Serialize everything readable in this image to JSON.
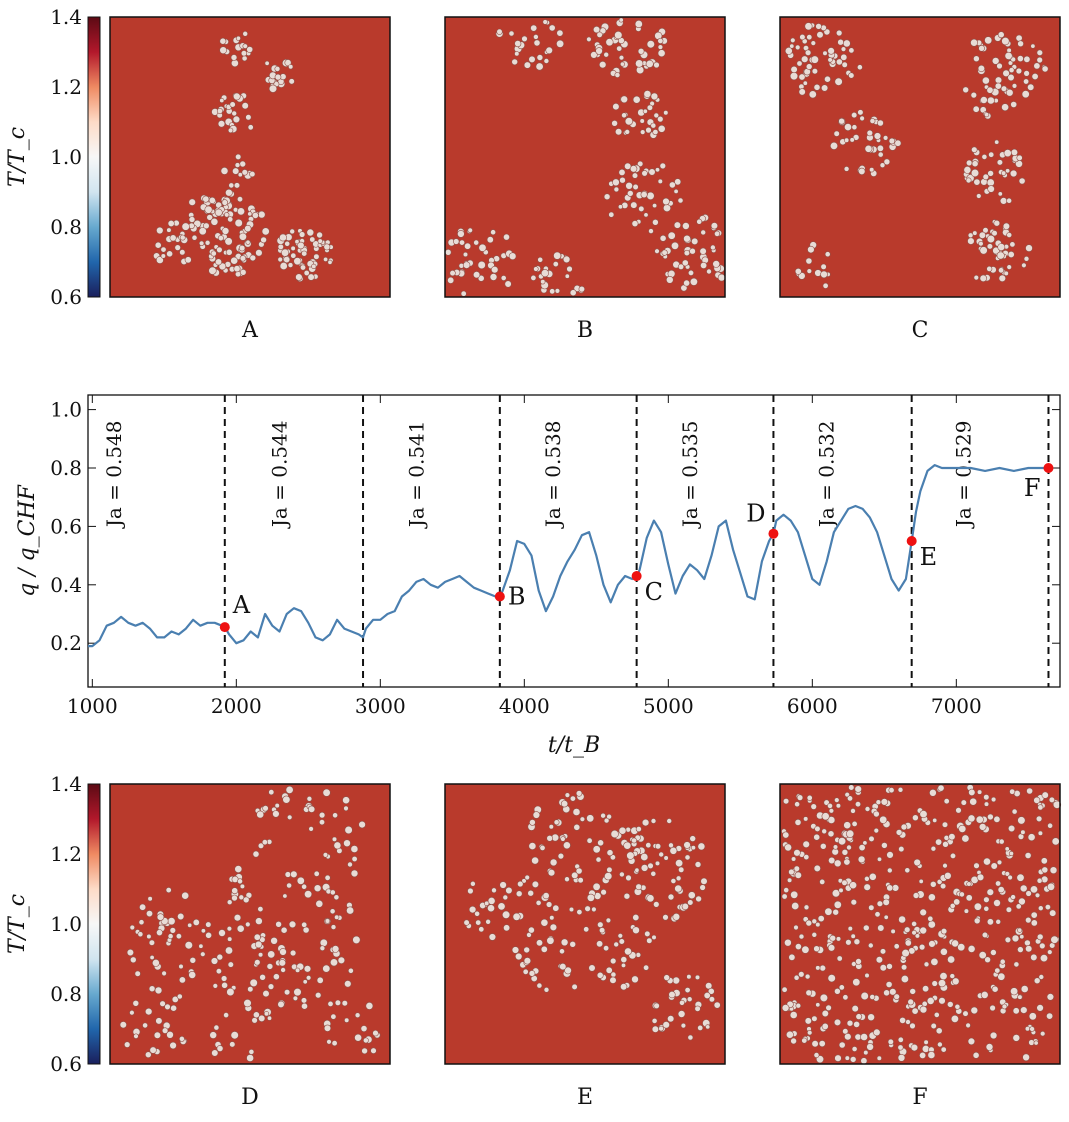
{
  "chart_data": [
    {
      "type": "heatmap",
      "panel_group": "top",
      "colorbar": {
        "label": "T/T_c",
        "range": [
          0.6,
          1.4
        ],
        "ticks": [
          "0.6",
          "0.8",
          "1.0",
          "1.2",
          "1.4"
        ],
        "colors": [
          "#1a1f5c",
          "#2166ac",
          "#67a9cf",
          "#d1e5f0",
          "#f7f7f7",
          "#fddbc7",
          "#ef8a62",
          "#b2182b",
          "#5c0a14"
        ]
      },
      "panels": [
        {
          "label": "A",
          "pattern": "sparse-cluster"
        },
        {
          "label": "B",
          "pattern": "growing-cluster"
        },
        {
          "label": "C",
          "pattern": "connected-cluster"
        }
      ]
    },
    {
      "type": "line",
      "title": "",
      "xlabel": "t/t_B",
      "ylabel": "q / q_CHF",
      "xlim": [
        970,
        7720
      ],
      "ylim": [
        0.05,
        1.05
      ],
      "xticks": [
        1000,
        2000,
        3000,
        4000,
        5000,
        6000,
        7000
      ],
      "yticks": [
        0.2,
        0.4,
        0.6,
        0.8,
        1.0
      ],
      "line_color": "#4a7fb0",
      "vlines": [
        1920,
        2880,
        3830,
        4780,
        5730,
        6690,
        7640
      ],
      "ja_labels": [
        {
          "x": 1150,
          "text": "Ja = 0.548"
        },
        {
          "x": 2300,
          "text": "Ja = 0.544"
        },
        {
          "x": 3250,
          "text": "Ja = 0.541"
        },
        {
          "x": 4200,
          "text": "Ja = 0.538"
        },
        {
          "x": 5150,
          "text": "Ja = 0.535"
        },
        {
          "x": 6100,
          "text": "Ja = 0.532"
        },
        {
          "x": 7050,
          "text": "Ja = 0.529"
        }
      ],
      "points": [
        {
          "label": "A",
          "x": 1920,
          "y": 0.255,
          "label_side": "right-up"
        },
        {
          "label": "B",
          "x": 3830,
          "y": 0.36,
          "label_side": "right"
        },
        {
          "label": "C",
          "x": 4780,
          "y": 0.43,
          "label_side": "right-down"
        },
        {
          "label": "D",
          "x": 5730,
          "y": 0.575,
          "label_side": "left-up"
        },
        {
          "label": "E",
          "x": 6690,
          "y": 0.55,
          "label_side": "right-down"
        },
        {
          "label": "F",
          "x": 7640,
          "y": 0.8,
          "label_side": "left-down"
        }
      ],
      "series": [
        {
          "name": "q/q_CHF",
          "x": [
            970,
            1000,
            1050,
            1100,
            1150,
            1200,
            1250,
            1300,
            1350,
            1400,
            1450,
            1500,
            1550,
            1600,
            1650,
            1700,
            1750,
            1800,
            1850,
            1900,
            1920,
            1950,
            2000,
            2050,
            2100,
            2150,
            2200,
            2250,
            2300,
            2350,
            2400,
            2450,
            2500,
            2550,
            2600,
            2650,
            2700,
            2750,
            2800,
            2850,
            2880,
            2900,
            2950,
            3000,
            3050,
            3100,
            3150,
            3200,
            3250,
            3300,
            3350,
            3400,
            3450,
            3500,
            3550,
            3600,
            3650,
            3700,
            3750,
            3800,
            3830,
            3850,
            3900,
            3950,
            4000,
            4050,
            4100,
            4150,
            4200,
            4250,
            4300,
            4350,
            4400,
            4450,
            4500,
            4550,
            4600,
            4650,
            4700,
            4750,
            4780,
            4800,
            4850,
            4900,
            4950,
            5000,
            5050,
            5100,
            5150,
            5200,
            5250,
            5300,
            5350,
            5400,
            5450,
            5500,
            5550,
            5600,
            5650,
            5700,
            5730,
            5750,
            5800,
            5850,
            5900,
            5950,
            6000,
            6050,
            6100,
            6150,
            6200,
            6250,
            6300,
            6350,
            6400,
            6450,
            6500,
            6550,
            6600,
            6650,
            6690,
            6720,
            6750,
            6800,
            6850,
            6900,
            7000,
            7100,
            7200,
            7300,
            7400,
            7500,
            7600,
            7640
          ],
          "y": [
            0.19,
            0.19,
            0.21,
            0.26,
            0.27,
            0.29,
            0.27,
            0.26,
            0.27,
            0.25,
            0.22,
            0.22,
            0.24,
            0.23,
            0.25,
            0.28,
            0.26,
            0.27,
            0.27,
            0.26,
            0.255,
            0.23,
            0.2,
            0.21,
            0.24,
            0.22,
            0.3,
            0.26,
            0.24,
            0.3,
            0.32,
            0.31,
            0.27,
            0.22,
            0.21,
            0.23,
            0.28,
            0.25,
            0.24,
            0.23,
            0.22,
            0.25,
            0.28,
            0.28,
            0.3,
            0.31,
            0.36,
            0.38,
            0.41,
            0.42,
            0.4,
            0.39,
            0.41,
            0.42,
            0.43,
            0.41,
            0.39,
            0.38,
            0.37,
            0.36,
            0.36,
            0.38,
            0.45,
            0.55,
            0.54,
            0.5,
            0.38,
            0.31,
            0.36,
            0.43,
            0.48,
            0.52,
            0.57,
            0.58,
            0.5,
            0.4,
            0.34,
            0.4,
            0.43,
            0.42,
            0.43,
            0.45,
            0.56,
            0.62,
            0.58,
            0.47,
            0.37,
            0.43,
            0.47,
            0.45,
            0.42,
            0.5,
            0.6,
            0.62,
            0.52,
            0.44,
            0.36,
            0.35,
            0.48,
            0.55,
            0.575,
            0.62,
            0.64,
            0.62,
            0.58,
            0.5,
            0.42,
            0.4,
            0.48,
            0.58,
            0.62,
            0.66,
            0.67,
            0.66,
            0.63,
            0.58,
            0.5,
            0.42,
            0.38,
            0.42,
            0.55,
            0.65,
            0.72,
            0.79,
            0.81,
            0.8,
            0.8,
            0.8,
            0.79,
            0.8,
            0.79,
            0.8,
            0.8,
            0.8
          ]
        }
      ]
    },
    {
      "type": "heatmap",
      "panel_group": "bottom",
      "colorbar": {
        "label": "T/T_c",
        "range": [
          0.6,
          1.4
        ],
        "ticks": [
          "0.6",
          "0.8",
          "1.0",
          "1.2",
          "1.4"
        ],
        "colors": [
          "#1a1f5c",
          "#2166ac",
          "#67a9cf",
          "#d1e5f0",
          "#f7f7f7",
          "#fddbc7",
          "#ef8a62",
          "#b2182b",
          "#5c0a14"
        ]
      },
      "panels": [
        {
          "label": "D",
          "pattern": "large-cluster"
        },
        {
          "label": "E",
          "pattern": "large-cluster"
        },
        {
          "label": "F",
          "pattern": "full-coverage"
        }
      ]
    }
  ]
}
